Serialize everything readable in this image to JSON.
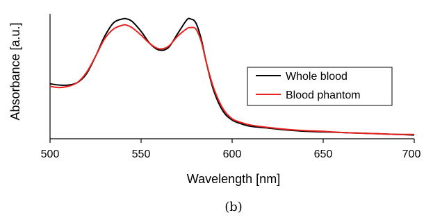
{
  "chart_data": {
    "type": "line",
    "title": "",
    "xlabel": "Wavelength [nm]",
    "ylabel": "Absorbance [a.u.]",
    "xlim": [
      500,
      700
    ],
    "ylim": [
      0,
      1
    ],
    "x_ticks": [
      500,
      550,
      600,
      650,
      700
    ],
    "x_tick_labels": [
      "500",
      "550",
      "600",
      "650",
      "700"
    ],
    "y_ticks_labeled": false,
    "grid": false,
    "legend_position": "right",
    "series": [
      {
        "name": "Whole blood",
        "color": "#000000",
        "x": [
          500,
          505,
          510,
          515,
          520,
          525,
          530,
          535,
          540,
          542,
          545,
          550,
          555,
          560,
          565,
          570,
          575,
          577,
          580,
          583,
          586,
          590,
          595,
          600,
          605,
          610,
          620,
          630,
          640,
          650,
          660,
          670,
          680,
          690,
          700
        ],
        "y": [
          0.44,
          0.43,
          0.43,
          0.45,
          0.52,
          0.66,
          0.82,
          0.93,
          0.96,
          0.96,
          0.94,
          0.86,
          0.76,
          0.71,
          0.73,
          0.84,
          0.95,
          0.96,
          0.93,
          0.8,
          0.6,
          0.38,
          0.22,
          0.15,
          0.12,
          0.1,
          0.085,
          0.07,
          0.06,
          0.055,
          0.05,
          0.045,
          0.04,
          0.035,
          0.03
        ]
      },
      {
        "name": "Blood phantom",
        "color": "#e8231f",
        "x": [
          500,
          505,
          510,
          515,
          520,
          525,
          530,
          535,
          540,
          542,
          545,
          550,
          555,
          560,
          565,
          570,
          575,
          577,
          580,
          583,
          586,
          590,
          595,
          600,
          605,
          610,
          620,
          630,
          640,
          650,
          660,
          670,
          680,
          690,
          700
        ],
        "y": [
          0.42,
          0.41,
          0.42,
          0.45,
          0.53,
          0.66,
          0.8,
          0.88,
          0.91,
          0.91,
          0.89,
          0.83,
          0.76,
          0.72,
          0.74,
          0.82,
          0.88,
          0.89,
          0.88,
          0.78,
          0.6,
          0.4,
          0.24,
          0.16,
          0.13,
          0.11,
          0.09,
          0.075,
          0.065,
          0.06,
          0.05,
          0.045,
          0.04,
          0.035,
          0.035
        ]
      }
    ],
    "caption": "(b)"
  }
}
